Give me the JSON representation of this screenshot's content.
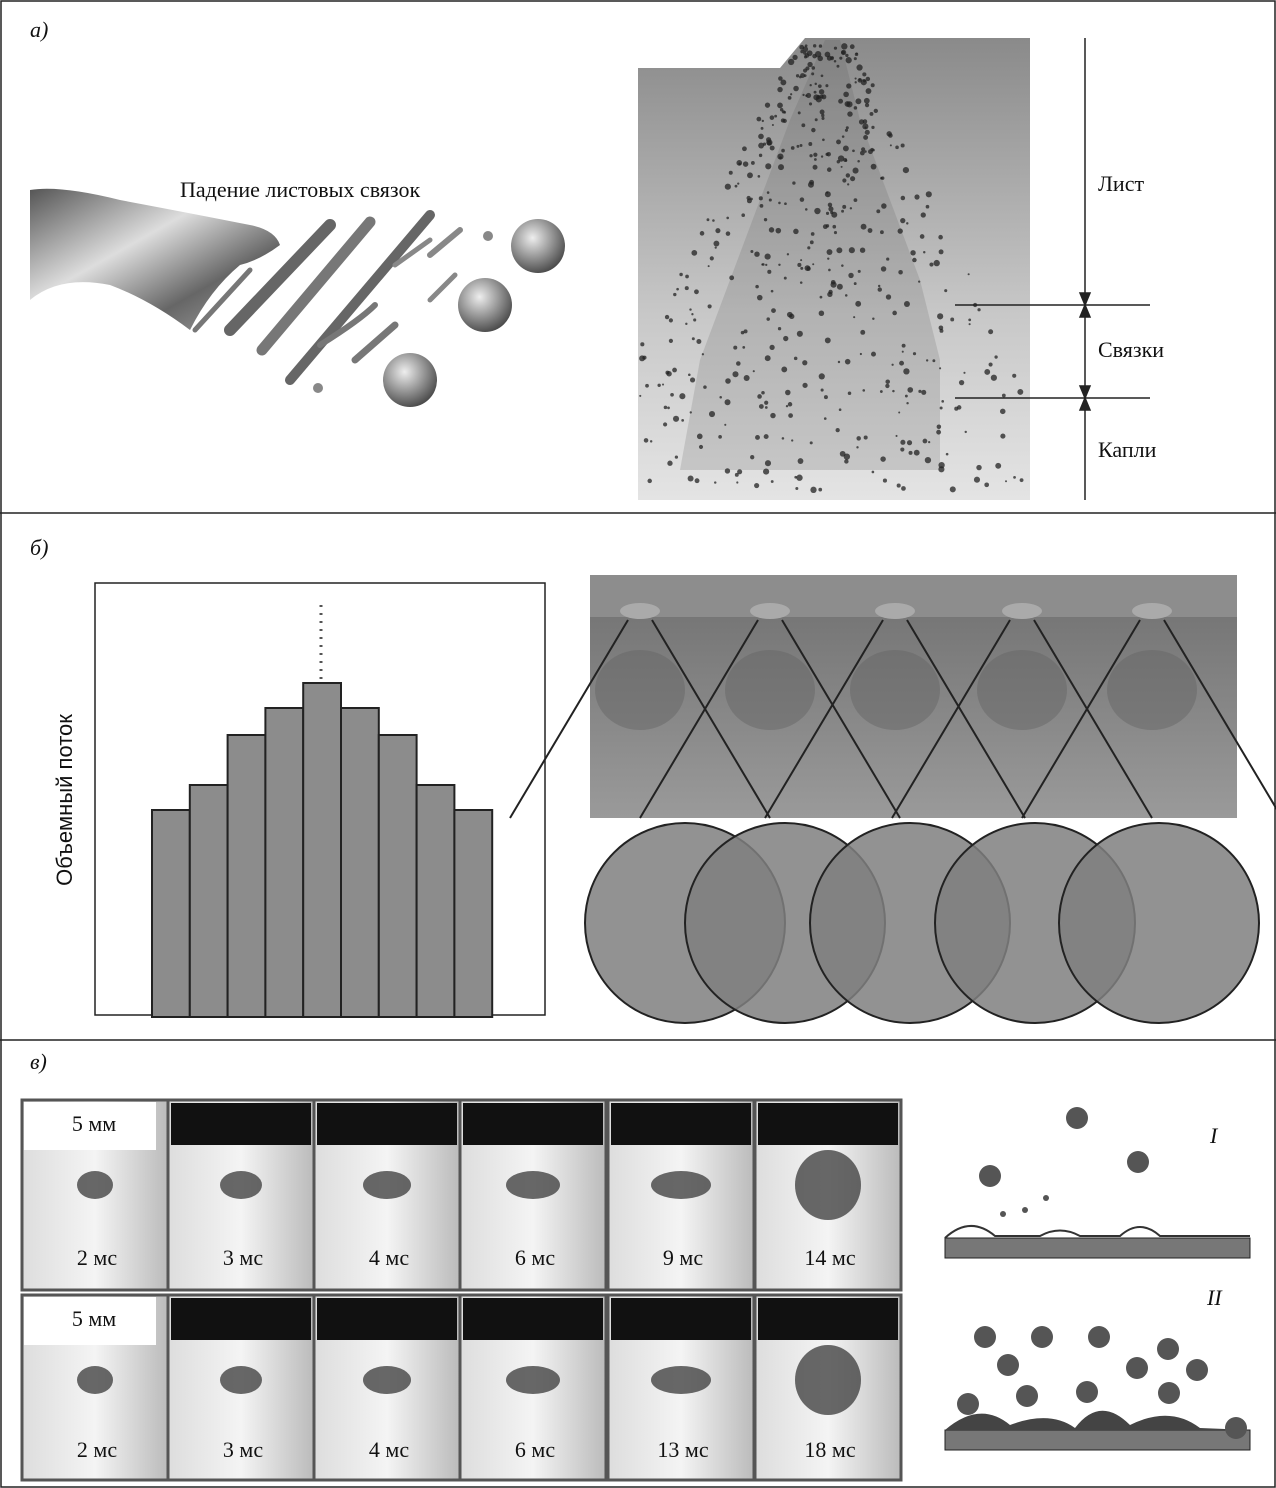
{
  "panel_a": {
    "label": "а)",
    "caption": "Падение листовых связок",
    "zones": [
      "Лист",
      "Связки",
      "Капли"
    ]
  },
  "panel_b": {
    "label": "б)",
    "y_axis": "Объемный поток"
  },
  "panel_c": {
    "label": "в)",
    "scale": [
      "5 мм",
      "5 мм"
    ],
    "rows": [
      [
        "2 мс",
        "3 мс",
        "4 мс",
        "6 мс",
        "9 мс",
        "14 мс"
      ],
      [
        "2 мс",
        "3 мс",
        "4 мс",
        "6 мс",
        "13 мс",
        "18 мс"
      ]
    ],
    "regimes": [
      "I",
      "II"
    ]
  }
}
